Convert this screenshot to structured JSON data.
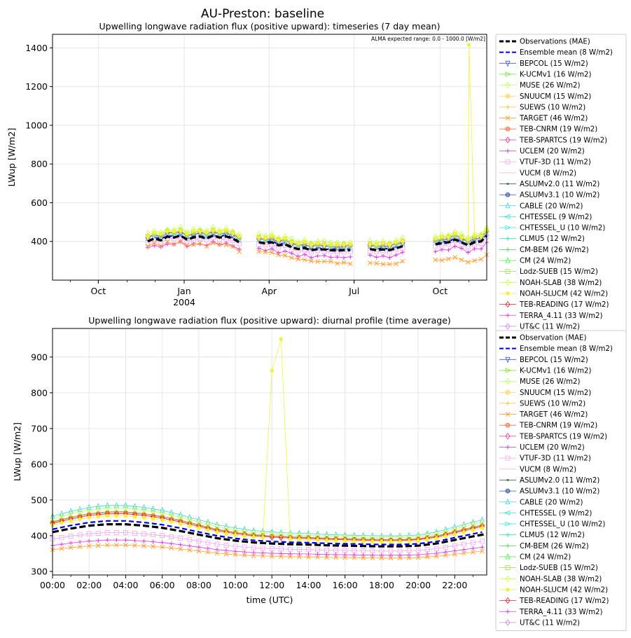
{
  "figure_title": "AU-Preston: baseline",
  "chart_data": [
    {
      "type": "line",
      "title": "Upwelling longwave radiation flux (positive upward): timeseries (7 day mean)",
      "xlabel": "",
      "ylabel": "LWup [W/m2]",
      "ylim": [
        200,
        1470
      ],
      "yticks": [
        400,
        600,
        800,
        1000,
        1200,
        1400
      ],
      "xlim": [
        "2003-08-13",
        "2004-11-20"
      ],
      "xticks": [
        {
          "date": "2003-10-01",
          "label": "Oct",
          "sublabel": ""
        },
        {
          "date": "2004-01-01",
          "label": "Jan",
          "sublabel": "2004"
        },
        {
          "date": "2004-04-01",
          "label": "Apr",
          "sublabel": ""
        },
        {
          "date": "2004-07-01",
          "label": "Jul",
          "sublabel": ""
        },
        {
          "date": "2004-10-01",
          "label": "Oct",
          "sublabel": ""
        }
      ],
      "annotation": "ALMA expected range: 0.0 - 1000.0 [W/m2]",
      "legend_position": "outside right",
      "legend": [
        "Observations (MAE)",
        "Ensemble mean (8 W/m2)",
        "BEPCOL (15 W/m2)",
        "K-UCMv1 (16 W/m2)",
        "MUSE (26 W/m2)",
        "SNUUCM (15 W/m2)",
        "SUEWS (10 W/m2)",
        "TARGET (46 W/m2)",
        "TEB-CNRM (19 W/m2)",
        "TEB-SPARTCS (19 W/m2)",
        "UCLEM (20 W/m2)",
        "VTUF-3D (11 W/m2)",
        "VUCM (8 W/m2)",
        "ASLUMv2.0 (11 W/m2)",
        "ASLUMv3.1 (10 W/m2)",
        "CABLE (20 W/m2)",
        "CHTESSEL (9 W/m2)",
        "CHTESSEL_U (10 W/m2)",
        "CLMU5 (12 W/m2)",
        "CM-BEM (26 W/m2)",
        "CM (24 W/m2)",
        "Lodz-SUEB (15 W/m2)",
        "NOAH-SLAB (38 W/m2)",
        "NOAH-SLUCM (42 W/m2)",
        "TEB-READING (17 W/m2)",
        "TERRA_4.11 (33 W/m2)",
        "UT&C (11 W/m2)"
      ],
      "observations": [
        {
          "date": "2003-11-23",
          "y": 400
        },
        {
          "date": "2003-11-30",
          "y": 415
        },
        {
          "date": "2003-12-07",
          "y": 405
        },
        {
          "date": "2003-12-14",
          "y": 425
        },
        {
          "date": "2003-12-21",
          "y": 420
        },
        {
          "date": "2003-12-28",
          "y": 430
        },
        {
          "date": "2004-01-04",
          "y": 410
        },
        {
          "date": "2004-01-11",
          "y": 420
        },
        {
          "date": "2004-01-18",
          "y": 425
        },
        {
          "date": "2004-01-25",
          "y": 415
        },
        {
          "date": "2004-02-01",
          "y": 430
        },
        {
          "date": "2004-02-08",
          "y": 420
        },
        {
          "date": "2004-02-15",
          "y": 425
        },
        {
          "date": "2004-02-22",
          "y": 415
        },
        {
          "date": "2004-02-29",
          "y": 395
        },
        {
          "date": "2004-03-21",
          "y": 395
        },
        {
          "date": "2004-03-28",
          "y": 390
        },
        {
          "date": "2004-04-04",
          "y": 395
        },
        {
          "date": "2004-04-11",
          "y": 380
        },
        {
          "date": "2004-04-18",
          "y": 385
        },
        {
          "date": "2004-04-25",
          "y": 370
        },
        {
          "date": "2004-05-02",
          "y": 360
        },
        {
          "date": "2004-05-09",
          "y": 365
        },
        {
          "date": "2004-05-16",
          "y": 355
        },
        {
          "date": "2004-05-23",
          "y": 360
        },
        {
          "date": "2004-05-30",
          "y": 358
        },
        {
          "date": "2004-06-06",
          "y": 355
        },
        {
          "date": "2004-06-13",
          "y": 352
        },
        {
          "date": "2004-06-20",
          "y": 355
        },
        {
          "date": "2004-06-27",
          "y": 355
        },
        {
          "date": "2004-07-18",
          "y": 360
        },
        {
          "date": "2004-07-25",
          "y": 355
        },
        {
          "date": "2004-08-01",
          "y": 358
        },
        {
          "date": "2004-08-08",
          "y": 355
        },
        {
          "date": "2004-08-15",
          "y": 365
        },
        {
          "date": "2004-08-22",
          "y": 375
        },
        {
          "date": "2004-09-26",
          "y": 385
        },
        {
          "date": "2004-10-03",
          "y": 390
        },
        {
          "date": "2004-10-10",
          "y": 395
        },
        {
          "date": "2004-10-17",
          "y": 410
        },
        {
          "date": "2004-10-24",
          "y": 395
        },
        {
          "date": "2004-10-31",
          "y": 380
        },
        {
          "date": "2004-11-07",
          "y": 395
        },
        {
          "date": "2004-11-14",
          "y": 400
        },
        {
          "date": "2004-11-20",
          "y": 430
        }
      ],
      "series": [
        {
          "name": "Ensemble mean (8 W/m2)",
          "color": "#0000ee",
          "style": "dash",
          "offset": 5
        },
        {
          "name": "TEB-CNRM (19 W/m2)",
          "color": "#ff6b3d",
          "marker": "o",
          "offset": 25
        },
        {
          "name": "TEB-READING (17 W/m2)",
          "color": "#e8202a",
          "marker": "d",
          "offset": 20
        },
        {
          "name": "NOAH-SLAB (38 W/m2)",
          "color": "#c8ff3c",
          "marker": "d",
          "offset": 40
        },
        {
          "name": "CABLE (20 W/m2)",
          "color": "#33d6ea",
          "marker": "^",
          "offset": 15
        },
        {
          "name": "CM-BEM (26 W/m2)",
          "color": "#4cd94c",
          "marker": "+",
          "offset": 30
        },
        {
          "name": "MUSE (26 W/m2)",
          "color": "#a8ff5a",
          "marker": "d",
          "offset": 25
        },
        {
          "name": "VTUF-3D (11 W/m2)",
          "color": "#f2a2f2",
          "marker": "s",
          "offset": -10
        },
        {
          "name": "TERRA_4.11 (33 W/m2)",
          "color": "#e533e5",
          "marker": "+",
          "offset": -35
        },
        {
          "name": "TARGET (46 W/m2)",
          "color": "#ff9d2e",
          "marker": "x",
          "offset": -25,
          "slope": -70
        },
        {
          "name": "NOAH-SLUCM (42 W/m2)",
          "color": "#f2f23c",
          "marker": "*",
          "offset": 30,
          "spike": {
            "date": "2004-11-01",
            "y": 1415
          }
        }
      ]
    },
    {
      "type": "line",
      "title": "Upwelling longwave radiation flux (positive upward): diurnal profile (time average)",
      "xlabel": "time (UTC)",
      "ylabel": "LWup [W/m2]",
      "ylim": [
        290,
        980
      ],
      "yticks": [
        300,
        400,
        500,
        600,
        700,
        800,
        900
      ],
      "xlim": [
        0,
        23.75
      ],
      "xticks": [
        {
          "x": 0,
          "label": "00:00"
        },
        {
          "x": 2,
          "label": "02:00"
        },
        {
          "x": 4,
          "label": "04:00"
        },
        {
          "x": 6,
          "label": "06:00"
        },
        {
          "x": 8,
          "label": "08:00"
        },
        {
          "x": 10,
          "label": "10:00"
        },
        {
          "x": 12,
          "label": "12:00"
        },
        {
          "x": 14,
          "label": "14:00"
        },
        {
          "x": 16,
          "label": "16:00"
        },
        {
          "x": 18,
          "label": "18:00"
        },
        {
          "x": 20,
          "label": "20:00"
        },
        {
          "x": 22,
          "label": "22:00"
        }
      ],
      "legend_position": "outside right",
      "legend": [
        "Observation (MAE)",
        "Ensemble mean (8 W/m2)",
        "BEPCOL (15 W/m2)",
        "K-UCMv1 (16 W/m2)",
        "MUSE (26 W/m2)",
        "SNUUCM (15 W/m2)",
        "SUEWS (10 W/m2)",
        "TARGET (46 W/m2)",
        "TEB-CNRM (19 W/m2)",
        "TEB-SPARTCS (19 W/m2)",
        "UCLEM (20 W/m2)",
        "VTUF-3D (11 W/m2)",
        "VUCM (8 W/m2)",
        "ASLUMv2.0 (11 W/m2)",
        "ASLUMv3.1 (10 W/m2)",
        "CABLE (20 W/m2)",
        "CHTESSEL (9 W/m2)",
        "CHTESSEL_U (10 W/m2)",
        "CLMU5 (12 W/m2)",
        "CM-BEM (26 W/m2)",
        "CM (24 W/m2)",
        "Lodz-SUEB (15 W/m2)",
        "NOAH-SLAB (38 W/m2)",
        "NOAH-SLUCM (42 W/m2)",
        "TEB-READING (17 W/m2)",
        "TERRA_4.11 (33 W/m2)",
        "UT&C (11 W/m2)"
      ],
      "observations": [
        {
          "x": 0,
          "y": 410
        },
        {
          "x": 1,
          "y": 420
        },
        {
          "x": 2,
          "y": 428
        },
        {
          "x": 3,
          "y": 432
        },
        {
          "x": 4,
          "y": 432
        },
        {
          "x": 5,
          "y": 428
        },
        {
          "x": 6,
          "y": 422
        },
        {
          "x": 7,
          "y": 413
        },
        {
          "x": 8,
          "y": 403
        },
        {
          "x": 9,
          "y": 393
        },
        {
          "x": 10,
          "y": 386
        },
        {
          "x": 11,
          "y": 381
        },
        {
          "x": 12,
          "y": 378
        },
        {
          "x": 13,
          "y": 376
        },
        {
          "x": 14,
          "y": 375
        },
        {
          "x": 15,
          "y": 373
        },
        {
          "x": 16,
          "y": 372
        },
        {
          "x": 17,
          "y": 371
        },
        {
          "x": 18,
          "y": 370
        },
        {
          "x": 19,
          "y": 370
        },
        {
          "x": 20,
          "y": 372
        },
        {
          "x": 21,
          "y": 378
        },
        {
          "x": 22,
          "y": 388
        },
        {
          "x": 23,
          "y": 398
        },
        {
          "x": 23.75,
          "y": 405
        }
      ],
      "series": [
        {
          "name": "Ensemble mean (8 W/m2)",
          "color": "#0000ee",
          "style": "dash",
          "offset": 8,
          "bump": {
            "x": 12.25,
            "y": 395
          }
        },
        {
          "name": "CABLE (20 W/m2)",
          "color": "#33d6ea",
          "marker": "^",
          "offset": 45
        },
        {
          "name": "CM-BEM (26 W/m2)",
          "color": "#4cd94c",
          "marker": "+",
          "offset": 30
        },
        {
          "name": "TEB-CNRM (19 W/m2)",
          "color": "#ff6b3d",
          "marker": "o",
          "offset": 28
        },
        {
          "name": "TEB-READING (17 W/m2)",
          "color": "#e8202a",
          "marker": "d",
          "offset": 25
        },
        {
          "name": "NOAH-SLAB (38 W/m2)",
          "color": "#c8ff3c",
          "marker": "d",
          "offset": 38
        },
        {
          "name": "VTUF-3D (11 W/m2)",
          "color": "#f2a2f2",
          "marker": "s",
          "offset": -20
        },
        {
          "name": "TERRA_4.11 (33 W/m2)",
          "color": "#e533e5",
          "marker": "+",
          "offset": -38
        },
        {
          "name": "TARGET (46 W/m2)",
          "color": "#ff9d2e",
          "marker": "x",
          "offset": -50
        },
        {
          "name": "NOAH-SLUCM (42 W/m2)",
          "color": "#f2f23c",
          "marker": "*",
          "offset": 20,
          "spike": [
            {
              "x": 12,
              "y": 862
            },
            {
              "x": 12.5,
              "y": 950
            }
          ]
        }
      ]
    }
  ]
}
